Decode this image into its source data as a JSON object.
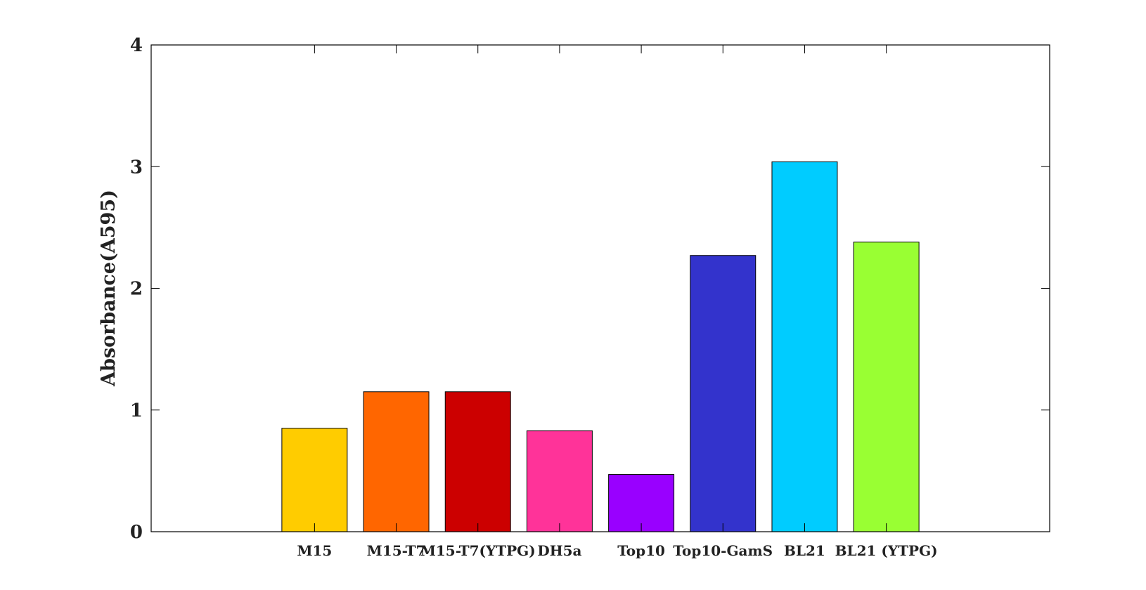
{
  "chart_data": {
    "type": "bar",
    "title": "",
    "xlabel": "",
    "ylabel": "Absorbance(A595)",
    "ylim": [
      0,
      4
    ],
    "yticks": [
      0,
      1,
      2,
      3,
      4
    ],
    "grid": false,
    "legend": "none",
    "categories": [
      "M15",
      "M15-T7",
      "M15-T7(YTPG)",
      "DH5a",
      "Top10",
      "Top10-GamS",
      "BL21",
      "BL21 (YTPG)"
    ],
    "values": [
      0.85,
      1.15,
      1.15,
      0.83,
      0.47,
      2.27,
      3.04,
      2.38
    ],
    "colors": [
      "#FFCC00",
      "#FF6600",
      "#CC0000",
      "#FF3399",
      "#9900FF",
      "#3333CC",
      "#00CCFF",
      "#99FF33"
    ]
  }
}
